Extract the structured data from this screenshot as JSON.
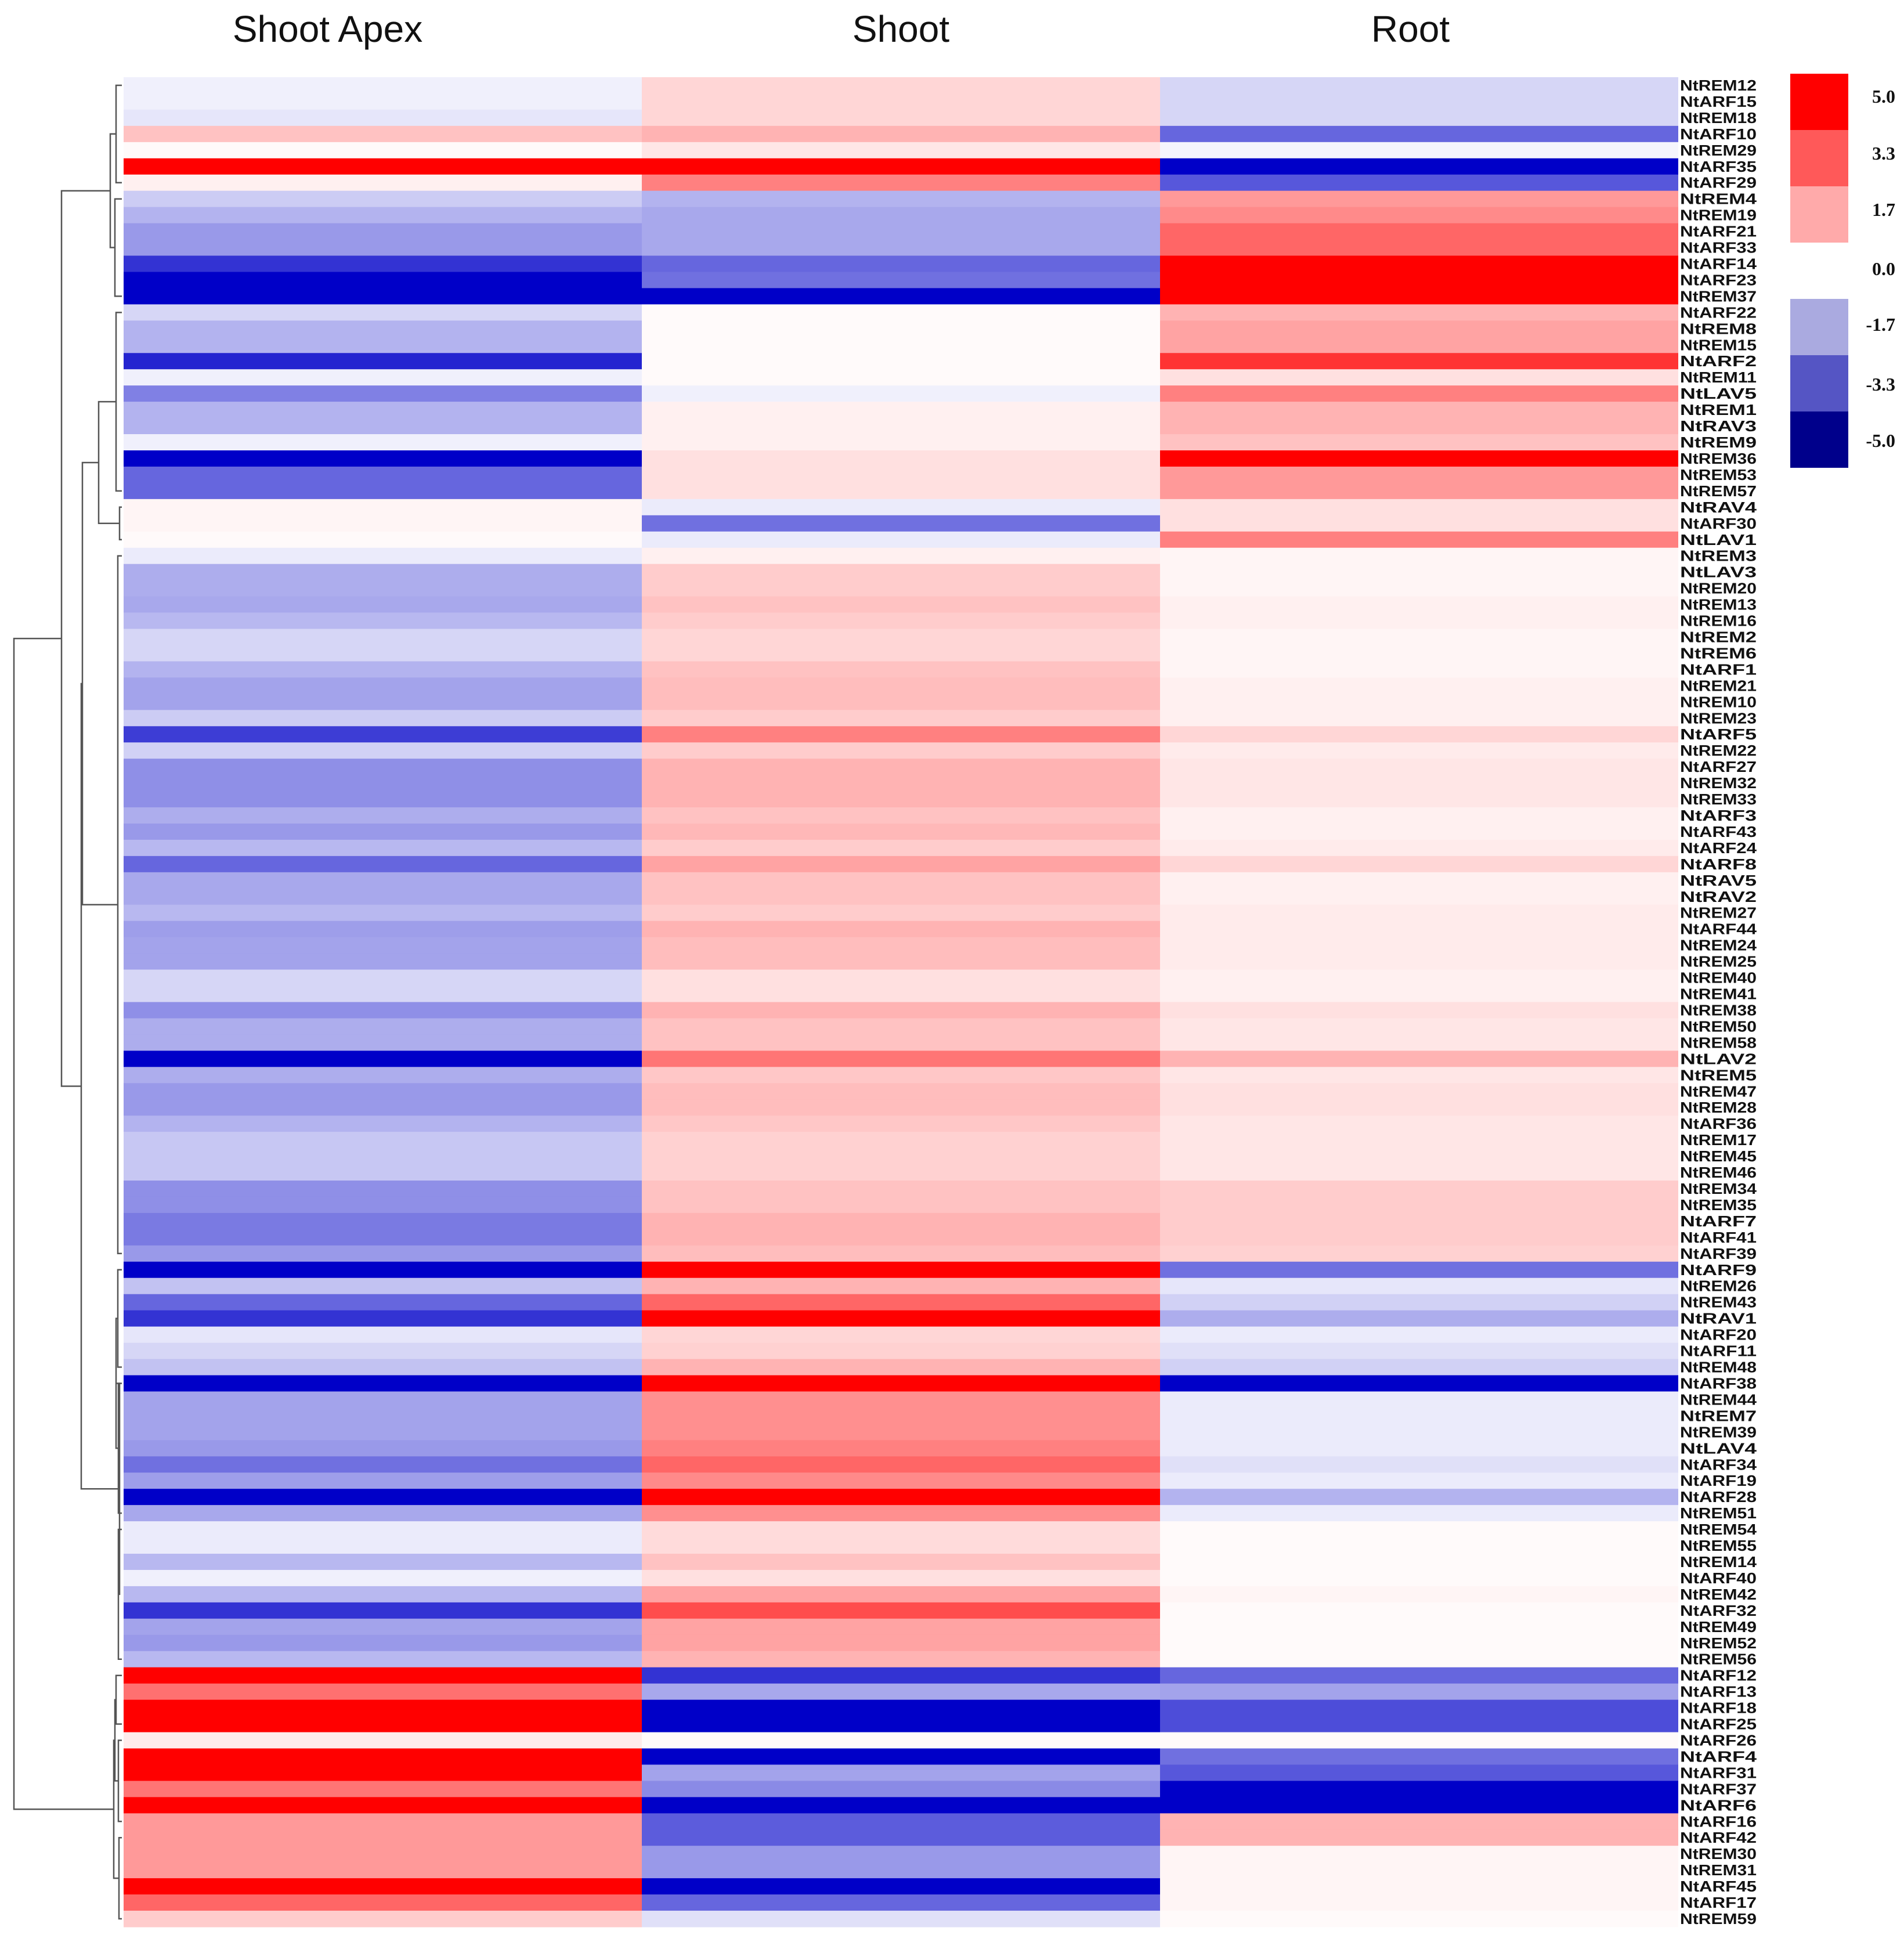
{
  "chart_data": {
    "type": "heatmap",
    "title": "",
    "columns": [
      "Shoot Apex",
      "Shoot",
      "Root"
    ],
    "rows": [
      "NtREM12",
      "NtARF15",
      "NtREM18",
      "NtARF10",
      "NtREM29",
      "NtARF35",
      "NtARF29",
      "NtREM4",
      "NtREM19",
      "NtARF21",
      "NtARF33",
      "NtARF14",
      "NtARF23",
      "NtREM37",
      "NtARF22",
      "NtREM8",
      "NtREM15",
      "NtARF2",
      "NtREM11",
      "NtLAV5",
      "NtREM1",
      "NtRAV3",
      "NtREM9",
      "NtREM36",
      "NtREM53",
      "NtREM57",
      "NtRAV4",
      "NtARF30",
      "NtLAV1",
      "NtREM3",
      "NtLAV3",
      "NtREM20",
      "NtREM13",
      "NtREM16",
      "NtREM2",
      "NtREM6",
      "NtARF1",
      "NtREM21",
      "NtREM10",
      "NtREM23",
      "NtARF5",
      "NtREM22",
      "NtARF27",
      "NtREM32",
      "NtREM33",
      "NtARF3",
      "NtARF43",
      "NtARF24",
      "NtARF8",
      "NtRAV5",
      "NtRAV2",
      "NtREM27",
      "NtARF44",
      "NtREM24",
      "NtREM25",
      "NtREM40",
      "NtREM41",
      "NtREM38",
      "NtREM50",
      "NtREM58",
      "NtLAV2",
      "NtREM5",
      "NtREM47",
      "NtREM28",
      "NtARF36",
      "NtREM17",
      "NtREM45",
      "NtREM46",
      "NtREM34",
      "NtREM35",
      "NtARF7",
      "NtARF41",
      "NtARF39",
      "NtARF9",
      "NtREM26",
      "NtREM43",
      "NtRAV1",
      "NtARF20",
      "NtARF11",
      "NtREM48",
      "NtARF38",
      "NtREM44",
      "NtREM7",
      "NtREM39",
      "NtLAV4",
      "NtARF34",
      "NtARF19",
      "NtARF28",
      "NtREM51",
      "NtREM54",
      "NtREM55",
      "NtREM14",
      "NtARF40",
      "NtREM42",
      "NtARF32",
      "NtREM49",
      "NtREM52",
      "NtREM56",
      "NtARF12",
      "NtARF13",
      "NtARF18",
      "NtARF25",
      "NtARF26",
      "NtARF4",
      "NtARF31",
      "NtARF37",
      "NtARF6",
      "NtARF16",
      "NtARF42",
      "NtREM30",
      "NtREM31",
      "NtARF45",
      "NtARF17",
      "NtREM59"
    ],
    "values": [
      [
        -0.3,
        0.8,
        -0.8
      ],
      [
        -0.3,
        0.8,
        -0.8
      ],
      [
        -0.5,
        0.8,
        -0.8
      ],
      [
        1.2,
        1.5,
        -3.0
      ],
      [
        0.1,
        0.5,
        -0.2
      ],
      [
        5.0,
        5.0,
        -5.0
      ],
      [
        0.3,
        2.5,
        -3.3
      ],
      [
        -1.0,
        -1.5,
        2.0
      ],
      [
        -1.5,
        -1.7,
        2.3
      ],
      [
        -2.0,
        -1.7,
        3.0
      ],
      [
        -2.0,
        -1.7,
        3.0
      ],
      [
        -4.0,
        -3.0,
        5.0
      ],
      [
        -5.0,
        -2.8,
        5.0
      ],
      [
        -5.0,
        -5.0,
        5.0
      ],
      [
        -0.8,
        0.1,
        1.5
      ],
      [
        -1.5,
        0.1,
        1.8
      ],
      [
        -1.5,
        0.1,
        1.8
      ],
      [
        -4.3,
        0.1,
        4.0
      ],
      [
        -0.3,
        0.1,
        0.6
      ],
      [
        -2.5,
        -0.3,
        2.5
      ],
      [
        -1.5,
        0.3,
        1.5
      ],
      [
        -1.5,
        0.3,
        1.5
      ],
      [
        -0.3,
        0.3,
        1.2
      ],
      [
        -5.0,
        0.6,
        5.0
      ],
      [
        -3.0,
        0.6,
        2.0
      ],
      [
        -3.0,
        0.6,
        2.0
      ],
      [
        0.2,
        -0.4,
        0.6
      ],
      [
        0.2,
        -2.8,
        0.6
      ],
      [
        0.1,
        -0.4,
        2.5
      ],
      [
        -0.4,
        0.3,
        0.2
      ],
      [
        -1.6,
        1.0,
        0.2
      ],
      [
        -1.6,
        1.0,
        0.2
      ],
      [
        -1.7,
        1.2,
        0.3
      ],
      [
        -1.4,
        1.0,
        0.3
      ],
      [
        -0.8,
        0.8,
        0.2
      ],
      [
        -0.8,
        0.8,
        0.2
      ],
      [
        -1.5,
        1.2,
        0.2
      ],
      [
        -1.8,
        1.3,
        0.3
      ],
      [
        -1.8,
        1.3,
        0.3
      ],
      [
        -1.0,
        1.0,
        0.3
      ],
      [
        -3.8,
        2.5,
        0.8
      ],
      [
        -0.9,
        1.0,
        0.4
      ],
      [
        -2.2,
        1.5,
        0.5
      ],
      [
        -2.2,
        1.5,
        0.5
      ],
      [
        -2.2,
        1.5,
        0.5
      ],
      [
        -1.6,
        1.2,
        0.3
      ],
      [
        -2.0,
        1.4,
        0.3
      ],
      [
        -1.4,
        1.0,
        0.4
      ],
      [
        -3.0,
        1.8,
        0.8
      ],
      [
        -1.7,
        1.2,
        0.3
      ],
      [
        -1.7,
        1.2,
        0.3
      ],
      [
        -1.4,
        1.0,
        0.4
      ],
      [
        -1.9,
        1.5,
        0.4
      ],
      [
        -1.8,
        1.3,
        0.4
      ],
      [
        -1.8,
        1.3,
        0.4
      ],
      [
        -0.8,
        0.6,
        0.3
      ],
      [
        -0.8,
        0.6,
        0.3
      ],
      [
        -2.2,
        1.5,
        0.6
      ],
      [
        -1.6,
        1.2,
        0.5
      ],
      [
        -1.6,
        1.2,
        0.5
      ],
      [
        -5.0,
        2.7,
        1.5
      ],
      [
        -1.6,
        1.1,
        0.5
      ],
      [
        -2.0,
        1.3,
        0.6
      ],
      [
        -2.0,
        1.3,
        0.6
      ],
      [
        -1.5,
        1.1,
        0.5
      ],
      [
        -1.1,
        0.9,
        0.5
      ],
      [
        -1.1,
        0.9,
        0.5
      ],
      [
        -1.1,
        0.9,
        0.5
      ],
      [
        -2.2,
        1.2,
        1.0
      ],
      [
        -2.2,
        1.2,
        1.0
      ],
      [
        -2.6,
        1.5,
        1.0
      ],
      [
        -2.6,
        1.5,
        1.0
      ],
      [
        -2.0,
        1.3,
        0.9
      ],
      [
        -5.0,
        5.0,
        -2.8
      ],
      [
        -1.2,
        1.5,
        -0.5
      ],
      [
        -3.0,
        3.0,
        -0.9
      ],
      [
        -4.0,
        5.0,
        -1.6
      ],
      [
        -0.5,
        0.8,
        -0.4
      ],
      [
        -0.8,
        0.9,
        -0.6
      ],
      [
        -1.2,
        1.5,
        -0.9
      ],
      [
        -5.0,
        5.0,
        -5.0
      ],
      [
        -1.8,
        2.2,
        -0.4
      ],
      [
        -1.8,
        2.2,
        -0.4
      ],
      [
        -1.8,
        2.2,
        -0.4
      ],
      [
        -2.0,
        2.5,
        -0.4
      ],
      [
        -2.8,
        3.0,
        -0.6
      ],
      [
        -1.9,
        2.3,
        -0.4
      ],
      [
        -5.0,
        5.0,
        -1.5
      ],
      [
        -1.7,
        2.2,
        -0.4
      ],
      [
        -0.4,
        0.7,
        0.1
      ],
      [
        -0.4,
        0.7,
        0.1
      ],
      [
        -1.4,
        1.2,
        0.1
      ],
      [
        -0.3,
        0.6,
        0.1
      ],
      [
        -1.4,
        1.8,
        0.2
      ],
      [
        -4.0,
        3.5,
        0.1
      ],
      [
        -1.8,
        1.8,
        0.1
      ],
      [
        -2.0,
        1.8,
        0.1
      ],
      [
        -1.4,
        1.5,
        0.1
      ],
      [
        5.0,
        -4.0,
        -3.0
      ],
      [
        2.8,
        -1.7,
        -1.8
      ],
      [
        5.0,
        -5.0,
        -3.5
      ],
      [
        5.0,
        -5.0,
        -3.5
      ],
      [
        0.4,
        0.1,
        0.1
      ],
      [
        5.0,
        -5.0,
        -2.8
      ],
      [
        5.0,
        -1.8,
        -3.3
      ],
      [
        2.7,
        -2.3,
        -5.0
      ],
      [
        5.0,
        -5.0,
        -5.0
      ],
      [
        2.0,
        -3.2,
        1.5
      ],
      [
        2.0,
        -3.2,
        1.5
      ],
      [
        2.0,
        -2.0,
        0.2
      ],
      [
        2.0,
        -2.0,
        0.2
      ],
      [
        5.0,
        -5.0,
        0.2
      ],
      [
        3.0,
        -3.0,
        0.2
      ],
      [
        1.0,
        -0.6,
        0.1
      ]
    ],
    "legend": {
      "ticks": [
        5.0,
        3.3,
        1.7,
        0.0,
        -1.7,
        -3.3,
        -5.0
      ],
      "tick_labels": [
        "5.0",
        "3.3",
        "1.7",
        "0.0",
        "-1.7",
        "-3.3",
        "-5.0"
      ],
      "placement": "top-right"
    },
    "color_scale": {
      "min": -5.0,
      "max": 5.0,
      "low_color": "#0000c8",
      "mid_color": "#ffffff",
      "high_color": "#ff0000"
    },
    "dendrogram": "left (row clustering)",
    "ylim": [
      -5.0,
      5.0
    ]
  }
}
